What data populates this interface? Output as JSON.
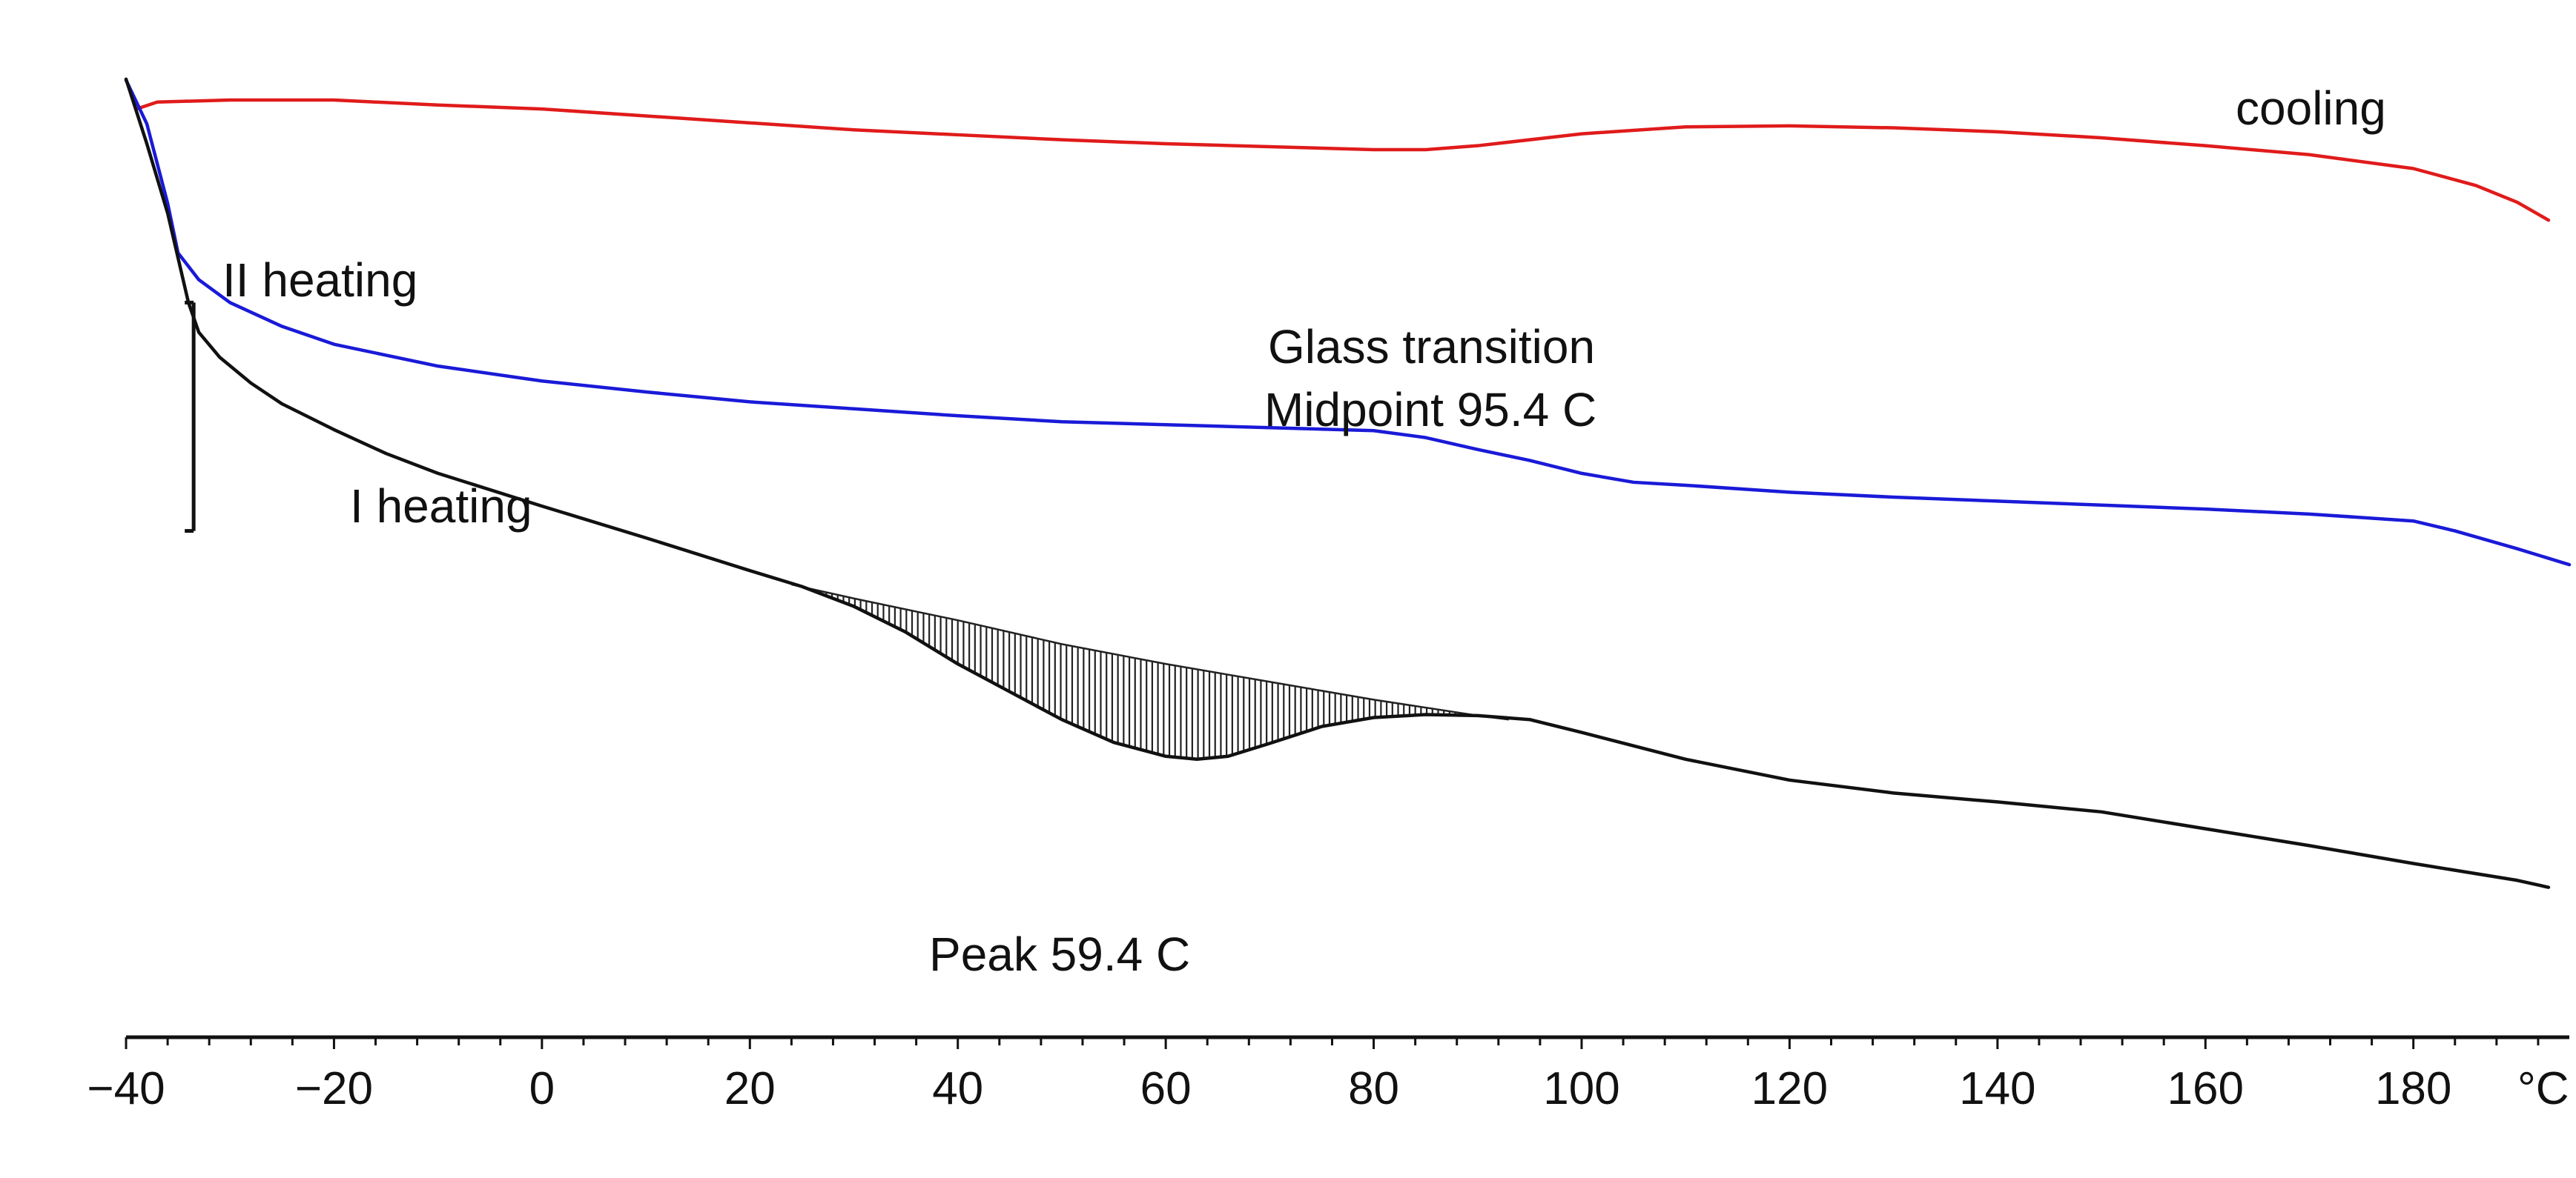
{
  "chart_data": {
    "type": "line",
    "title": "",
    "xlabel": "°C",
    "ylabel": "",
    "xlim": [
      -40,
      195
    ],
    "ylim": [
      0,
      100
    ],
    "grid": false,
    "x_ticks": [
      -40,
      -20,
      0,
      20,
      40,
      60,
      80,
      100,
      120,
      140,
      160,
      180
    ],
    "x_tick_labels": [
      "−40",
      "−20",
      "0",
      "20",
      "40",
      "60",
      "80",
      "100",
      "120",
      "140",
      "160",
      "180"
    ],
    "series": [
      {
        "name": "cooling",
        "color": "#e01b1b",
        "points": [
          [
            -39,
            93.5
          ],
          [
            -37,
            94.2
          ],
          [
            -30,
            94.4
          ],
          [
            -20,
            94.4
          ],
          [
            -10,
            93.9
          ],
          [
            0,
            93.5
          ],
          [
            10,
            92.8
          ],
          [
            20,
            92.1
          ],
          [
            30,
            91.4
          ],
          [
            40,
            90.9
          ],
          [
            50,
            90.4
          ],
          [
            60,
            90.0
          ],
          [
            70,
            89.7
          ],
          [
            80,
            89.4
          ],
          [
            85,
            89.4
          ],
          [
            90,
            89.8
          ],
          [
            100,
            91.0
          ],
          [
            110,
            91.7
          ],
          [
            120,
            91.8
          ],
          [
            130,
            91.6
          ],
          [
            140,
            91.2
          ],
          [
            150,
            90.6
          ],
          [
            160,
            89.8
          ],
          [
            170,
            88.9
          ],
          [
            180,
            87.5
          ],
          [
            186,
            85.8
          ],
          [
            190,
            84.1
          ],
          [
            193,
            82.3
          ]
        ]
      },
      {
        "name": "II heating",
        "color": "#1a1ad8",
        "points": [
          [
            -40,
            96.4
          ],
          [
            -38,
            92
          ],
          [
            -36,
            84
          ],
          [
            -35,
            79
          ],
          [
            -33,
            76.3
          ],
          [
            -30,
            74.0
          ],
          [
            -25,
            71.6
          ],
          [
            -20,
            69.8
          ],
          [
            -10,
            67.6
          ],
          [
            0,
            66.1
          ],
          [
            10,
            65.0
          ],
          [
            20,
            64.0
          ],
          [
            30,
            63.3
          ],
          [
            40,
            62.6
          ],
          [
            50,
            62.0
          ],
          [
            60,
            61.7
          ],
          [
            70,
            61.4
          ],
          [
            80,
            61.1
          ],
          [
            85,
            60.4
          ],
          [
            90,
            59.2
          ],
          [
            95,
            58.1
          ],
          [
            100,
            56.8
          ],
          [
            105,
            55.9
          ],
          [
            110,
            55.6
          ],
          [
            120,
            54.9
          ],
          [
            130,
            54.4
          ],
          [
            140,
            54.0
          ],
          [
            150,
            53.6
          ],
          [
            160,
            53.2
          ],
          [
            170,
            52.7
          ],
          [
            180,
            52.0
          ],
          [
            184,
            51.0
          ],
          [
            190,
            49.2
          ],
          [
            195,
            47.6
          ]
        ]
      },
      {
        "name": "I heating",
        "color": "#111111",
        "points": [
          [
            -40,
            96.5
          ],
          [
            -38,
            90
          ],
          [
            -36,
            83
          ],
          [
            -34,
            74
          ],
          [
            -33,
            71
          ],
          [
            -31,
            68.5
          ],
          [
            -28,
            65.9
          ],
          [
            -25,
            63.8
          ],
          [
            -20,
            61.2
          ],
          [
            -15,
            58.8
          ],
          [
            -10,
            56.8
          ],
          [
            0,
            53.5
          ],
          [
            10,
            50.3
          ],
          [
            20,
            47.0
          ],
          [
            25,
            45.4
          ],
          [
            30,
            43.4
          ],
          [
            35,
            40.8
          ],
          [
            40,
            37.6
          ],
          [
            45,
            34.8
          ],
          [
            50,
            32.0
          ],
          [
            55,
            29.7
          ],
          [
            60,
            28.3
          ],
          [
            63,
            28.0
          ],
          [
            66,
            28.3
          ],
          [
            70,
            29.6
          ],
          [
            75,
            31.3
          ],
          [
            80,
            32.2
          ],
          [
            85,
            32.5
          ],
          [
            90,
            32.4
          ],
          [
            95,
            32.0
          ],
          [
            100,
            30.7
          ],
          [
            110,
            28.0
          ],
          [
            120,
            25.9
          ],
          [
            130,
            24.6
          ],
          [
            140,
            23.7
          ],
          [
            150,
            22.7
          ],
          [
            160,
            21.0
          ],
          [
            170,
            19.3
          ],
          [
            180,
            17.5
          ],
          [
            190,
            15.8
          ],
          [
            193,
            15.1
          ]
        ]
      }
    ],
    "baseline": {
      "name": "I heating baseline",
      "points": [
        [
          24,
          45.6
        ],
        [
          30,
          44.2
        ],
        [
          40,
          42.0
        ],
        [
          50,
          39.6
        ],
        [
          60,
          37.6
        ],
        [
          70,
          35.8
        ],
        [
          80,
          34.0
        ],
        [
          90,
          32.4
        ],
        [
          93,
          32.0
        ]
      ]
    },
    "annotations": {
      "cooling": "cooling",
      "second_heating": "II heating",
      "first_heating": "I heating",
      "glass_line1": "Glass transition",
      "glass_line2": "Midpoint 95.4 C",
      "peak": "Peak 59.4 C"
    },
    "scale_bar": {
      "x": -33.5,
      "y_range": [
        51,
        74
      ]
    }
  }
}
